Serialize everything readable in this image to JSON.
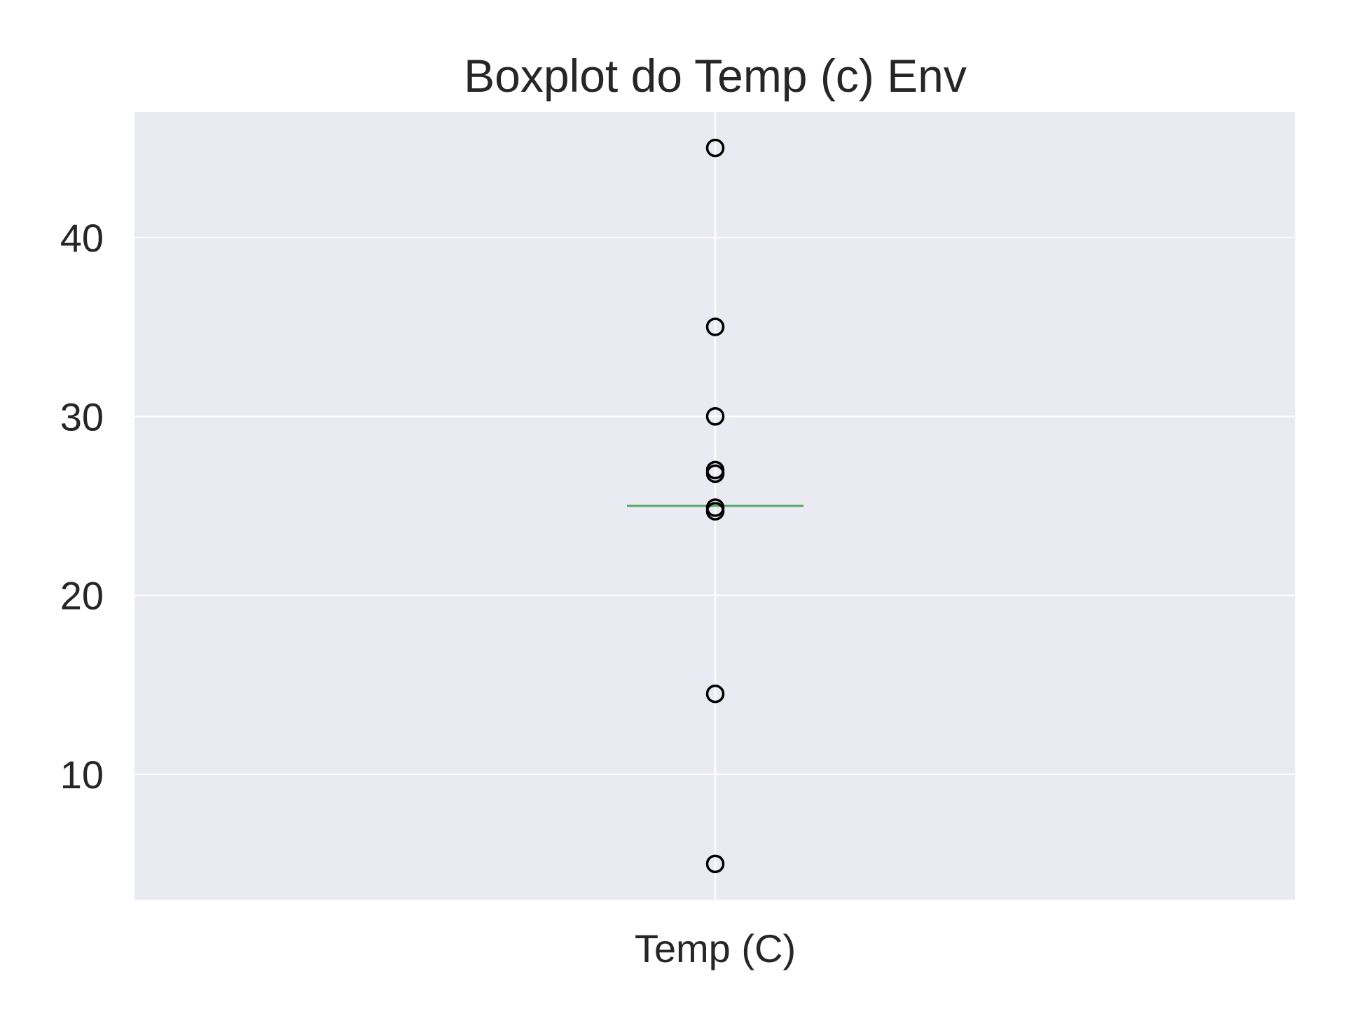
{
  "chart_data": {
    "type": "box",
    "title": "Boxplot do Temp (c) Env",
    "xlabel": "",
    "ylabel": "",
    "categories": [
      "Temp (C)"
    ],
    "y_ticks": [
      10,
      20,
      30,
      40
    ],
    "y_tick_labels": [
      "10",
      "20",
      "30",
      "40"
    ],
    "ylim": [
      3,
      47
    ],
    "grid": true,
    "legend": "none",
    "series": [
      {
        "median": 25,
        "q1": 25,
        "q3": 25,
        "whisker_low": 25,
        "whisker_high": 25,
        "outliers": [
          45,
          35,
          30,
          27,
          26.8,
          24.9,
          24.7,
          14.5,
          5
        ]
      }
    ],
    "colors": {
      "plot_background": "#eaeaf2",
      "grid": "#ffffff",
      "median": "#55a868",
      "outlier_edge": "#000000",
      "text": "#262626"
    }
  }
}
